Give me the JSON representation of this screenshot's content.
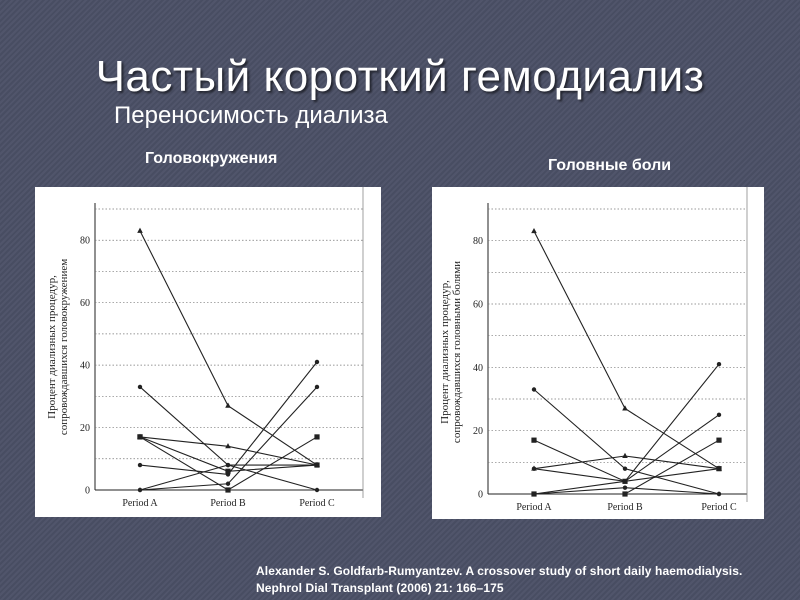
{
  "slide": {
    "title": "Частый короткий гемодиализ",
    "subtitle": "Переносимость диализа",
    "citation_line1": "Alexander S. Goldfarb-Rumyantzev. A crossover study of short daily haemodialysis.",
    "citation_line2": "Nephrol Dial Transplant (2006) 21: 166–175"
  },
  "colors": {
    "background": "#4b5066",
    "text": "#ffffff",
    "plot_ink": "#222222"
  },
  "chart_data": [
    {
      "type": "line",
      "heading": "Головокружения",
      "ylabel_line1": "Процент диализных процедур,",
      "ylabel_line2": "сопровождавшихся головокружением",
      "categories": [
        "Period A",
        "Period B",
        "Period C"
      ],
      "ylim": [
        0,
        90
      ],
      "yticks": [
        0,
        20,
        40,
        60,
        80
      ],
      "grid": true,
      "series": [
        {
          "marker": "triangle",
          "values": [
            83,
            27,
            8
          ]
        },
        {
          "marker": "dot",
          "values": [
            33,
            8,
            0
          ]
        },
        {
          "marker": "dot",
          "values": [
            8,
            5,
            41
          ]
        },
        {
          "marker": "square",
          "values": [
            17,
            6,
            8
          ]
        },
        {
          "marker": "square",
          "values": [
            17,
            0,
            17
          ]
        },
        {
          "marker": "triangle",
          "values": [
            17,
            14,
            8
          ]
        },
        {
          "marker": "dot",
          "values": [
            0,
            2,
            33
          ]
        },
        {
          "marker": "dot",
          "values": [
            0,
            8,
            8
          ]
        }
      ]
    },
    {
      "type": "line",
      "heading": "Головные боли",
      "ylabel_line1": "Процент диализных процедур,",
      "ylabel_line2": "сопровождавшихся головными болями",
      "categories": [
        "Period A",
        "Period B",
        "Period C"
      ],
      "ylim": [
        0,
        90
      ],
      "yticks": [
        0,
        20,
        40,
        60,
        80
      ],
      "grid": true,
      "series": [
        {
          "marker": "triangle",
          "values": [
            83,
            27,
            8
          ]
        },
        {
          "marker": "dot",
          "values": [
            33,
            8,
            0
          ]
        },
        {
          "marker": "dot",
          "values": [
            8,
            4,
            41
          ]
        },
        {
          "marker": "square",
          "values": [
            17,
            4,
            8
          ]
        },
        {
          "marker": "square",
          "values": [
            0,
            0,
            17
          ]
        },
        {
          "marker": "triangle",
          "values": [
            8,
            12,
            8
          ]
        },
        {
          "marker": "dot",
          "values": [
            0,
            4,
            25
          ]
        },
        {
          "marker": "dot",
          "values": [
            0,
            2,
            0
          ]
        }
      ]
    }
  ]
}
